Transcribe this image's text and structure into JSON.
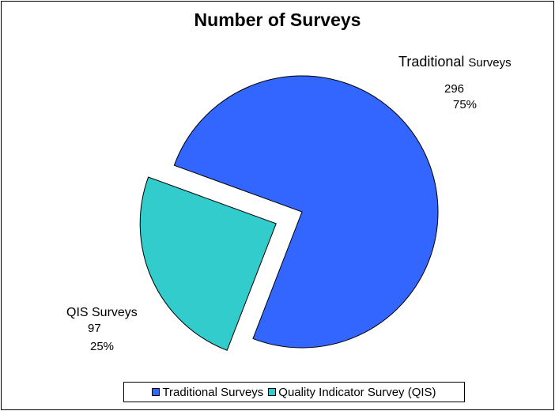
{
  "chart_data": {
    "type": "pie",
    "title": "Number of Surveys",
    "slices": [
      {
        "label_main": "Traditional",
        "label_sub": "Surveys",
        "legend": "Traditional Surveys",
        "value": 296,
        "value_label": "296",
        "percent_label": "75%",
        "color": "#3366FF",
        "exploded": false
      },
      {
        "label_main": "QIS Surveys",
        "label_sub": "",
        "legend": "Quality Indicator Survey (QIS)",
        "value": 97,
        "value_label": "97",
        "percent_label": "25%",
        "color": "#33CCCC",
        "exploded": true
      }
    ],
    "legend_position": "bottom",
    "start_angle_deg": 0,
    "direction": "clockwise"
  }
}
